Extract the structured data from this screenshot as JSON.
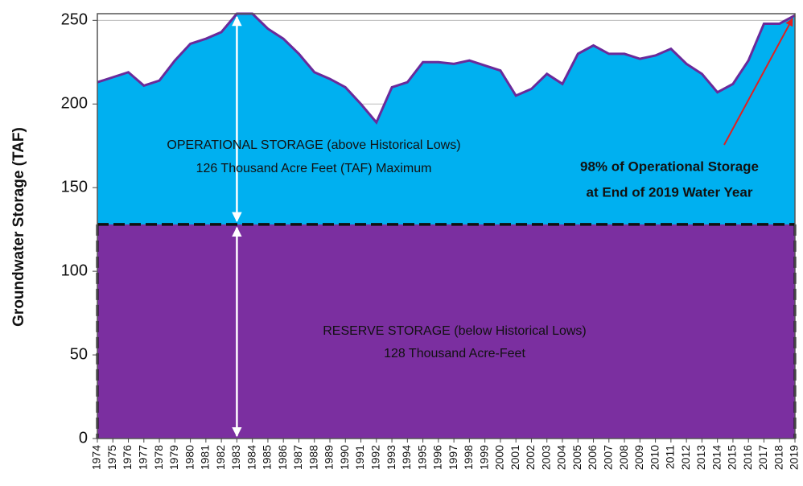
{
  "chart_data": {
    "type": "area",
    "y_label": "Groundwater Storage (TAF)",
    "categories": [
      "1974",
      "1975",
      "1976",
      "1977",
      "1978",
      "1979",
      "1980",
      "1981",
      "1982",
      "1983",
      "1984",
      "1985",
      "1986",
      "1987",
      "1988",
      "1989",
      "1990",
      "1991",
      "1992",
      "1993",
      "1994",
      "1995",
      "1996",
      "1997",
      "1998",
      "1999",
      "2000",
      "2001",
      "2002",
      "2003",
      "2004",
      "2005",
      "2006",
      "2007",
      "2008",
      "2009",
      "2010",
      "2011",
      "2012",
      "2013",
      "2014",
      "2015",
      "2016",
      "2017",
      "2018",
      "2019"
    ],
    "values": [
      213,
      216,
      219,
      211,
      214,
      226,
      236,
      239,
      243,
      254,
      254,
      245,
      239,
      230,
      219,
      215,
      210,
      200,
      189,
      210,
      213,
      225,
      225,
      224,
      226,
      223,
      220,
      205,
      209,
      218,
      212,
      230,
      235,
      230,
      230,
      227,
      229,
      233,
      224,
      218,
      207,
      212,
      226,
      248,
      248,
      253
    ],
    "fill_color": "#00b0f0",
    "line_color": "#6a2a9a",
    "reserve_level": 128,
    "reserve_color": "#7b2fa0",
    "ylim": [
      0,
      254
    ],
    "yticks": [
      0,
      50,
      100,
      150,
      200,
      250
    ],
    "grid": true,
    "annotations": {
      "operational": [
        "OPERATIONAL STORAGE (above Historical Lows)",
        "126 Thousand Acre Feet (TAF) Maximum"
      ],
      "reserve": [
        "RESERVE STORAGE (below Historical Lows)",
        "128 Thousand Acre-Feet"
      ],
      "end": [
        "98% of Operational Storage",
        "at End of 2019 Water Year"
      ]
    }
  }
}
